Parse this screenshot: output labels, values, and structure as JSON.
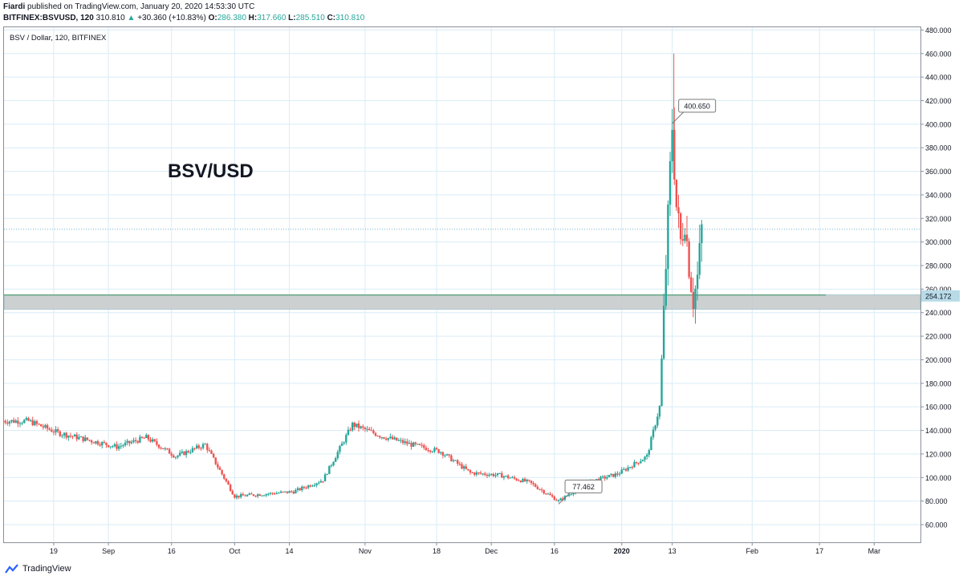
{
  "header": {
    "publisher": "Fiardi",
    "published_text": "published on TradingView.com, January 20, 2020 14:53:30 UTC",
    "symbol": "BITFINEX:BSVUSD, 120",
    "last": "310.810",
    "change": "+30.360 (+10.83%)",
    "o_label": "O:",
    "o": "286.380",
    "h_label": "H:",
    "h": "317.660",
    "l_label": "L:",
    "l": "285.510",
    "c_label": "C:",
    "c": "310.810"
  },
  "footer": {
    "brand": "TradingView"
  },
  "colors": {
    "up": "#26a69a",
    "down": "#ef5350",
    "grid": "#d9ecf7",
    "zone": "#c8cbcc",
    "price_tag": "#b9dbe8",
    "last_line": "#6fb2c9"
  },
  "chart_data": {
    "type": "candlestick",
    "legend": "BSV / Dollar, 120, BITFINEX",
    "annotation_title": "BSV/USD",
    "ylim": [
      45,
      483
    ],
    "y_ticks": [
      "60.000",
      "80.000",
      "100.000",
      "120.000",
      "140.000",
      "160.000",
      "180.000",
      "200.000",
      "220.000",
      "240.000",
      "260.000",
      "280.000",
      "300.000",
      "320.000",
      "340.000",
      "360.000",
      "380.000",
      "400.000",
      "420.000",
      "440.000",
      "460.000",
      "480.000"
    ],
    "x_ticks": [
      "19",
      "Sep",
      "16",
      "Oct",
      "14",
      "Nov",
      "18",
      "Dec",
      "16",
      "2020",
      "13",
      "Feb",
      "17",
      "Mar"
    ],
    "price_tag": "254.172",
    "last_price": 310.81,
    "support_zone": [
      243,
      255
    ],
    "annotations": [
      {
        "label": "400.650",
        "x": "Jan 13",
        "y": 400.65
      },
      {
        "label": "77.462",
        "x": "Dec 17",
        "y": 77.462
      }
    ],
    "series": [
      {
        "x": [
          "Aug 13",
          "Aug 20",
          "Aug 27",
          "Sep 3",
          "Sep 10",
          "Sep 17",
          "Sep 24",
          "Oct 1",
          "Oct 8",
          "Oct 15",
          "Oct 22",
          "Oct 29",
          "Nov 5",
          "Nov 12",
          "Nov 19",
          "Nov 26",
          "Dec 3",
          "Dec 10",
          "Dec 17",
          "Dec 24",
          "Dec 31",
          "Jan 7",
          "Jan 10",
          "Jan 13",
          "Jan 14",
          "Jan 15",
          "Jan 16",
          "Jan 17",
          "Jan 18",
          "Jan 19",
          "Jan 20"
        ],
        "values": [
          148,
          138,
          132,
          126,
          134,
          118,
          128,
          84,
          86,
          88,
          98,
          145,
          135,
          128,
          122,
          104,
          102,
          96,
          80,
          96,
          103,
          118,
          160,
          400,
          330,
          300,
          320,
          280,
          250,
          270,
          310.81
        ]
      }
    ]
  }
}
